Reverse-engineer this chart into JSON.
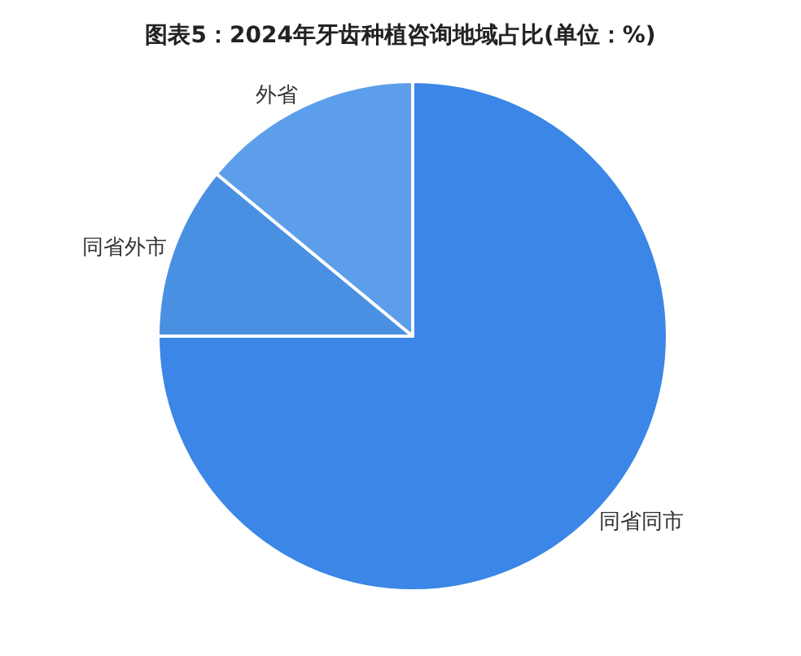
{
  "chart_data": {
    "type": "pie",
    "title": "图表5：2024年牙齿种植咨询地域占比(单位：%)",
    "categories": [
      "同省同市",
      "同省外市",
      "外省"
    ],
    "values": [
      75,
      11,
      14
    ],
    "colors": [
      "#3b86e6",
      "#4a90e2",
      "#5d9eea"
    ],
    "legend": false
  }
}
